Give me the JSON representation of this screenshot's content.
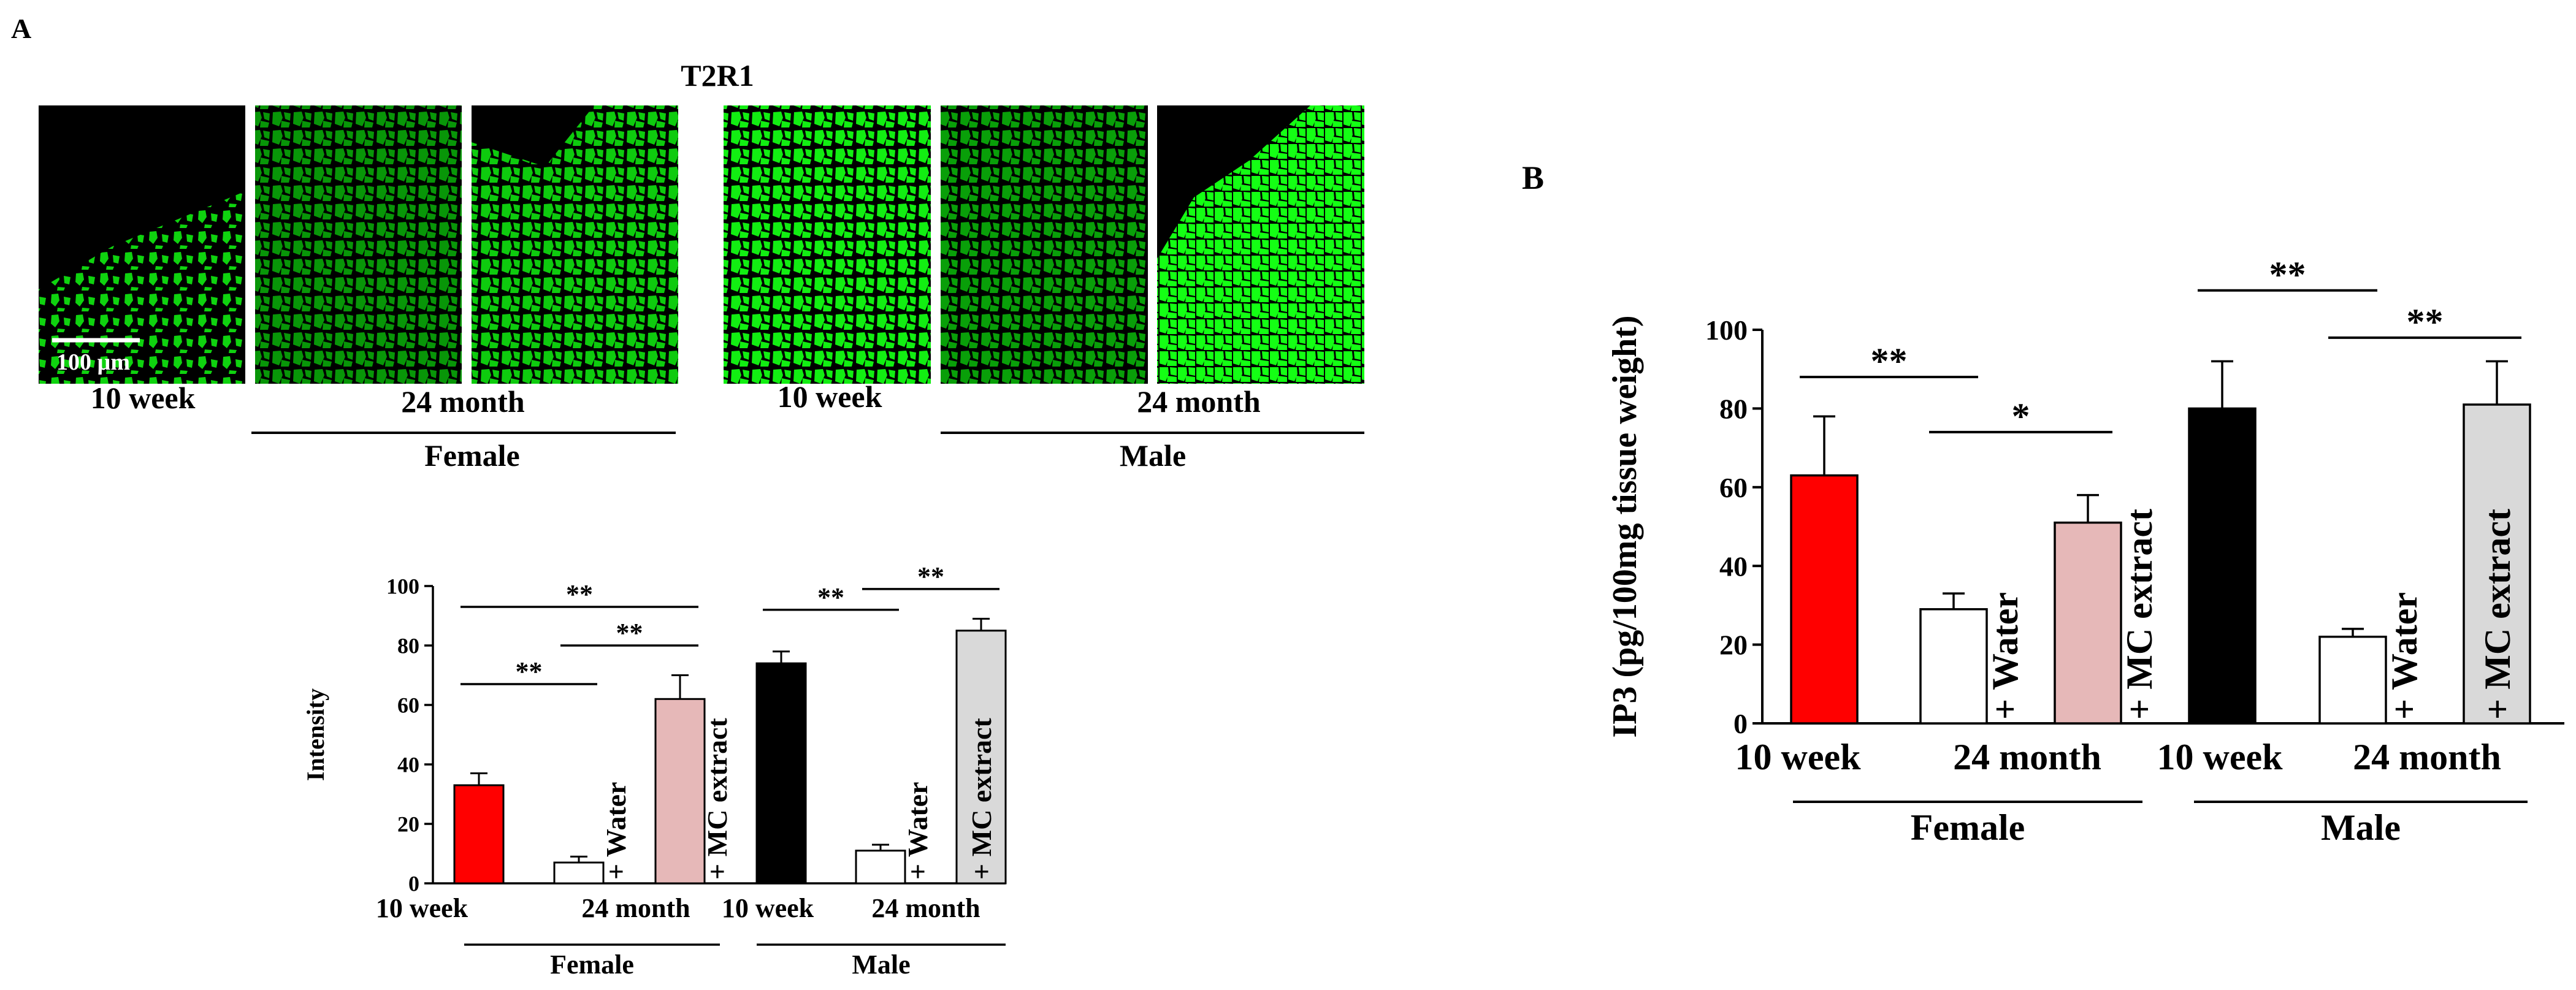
{
  "panel_a": {
    "label": "A",
    "title": "T2R1",
    "scale_bar": "100 µm",
    "micrographs": [
      {
        "group": "Female",
        "condition": "10 week",
        "brightness": 0.75,
        "pattern": "sparse"
      },
      {
        "group": "Female",
        "condition": "24 month + Water",
        "brightness": 0.4,
        "pattern": "dense"
      },
      {
        "group": "Female",
        "condition": "24 month + MC extract",
        "brightness": 0.7,
        "pattern": "dense"
      },
      {
        "group": "Male",
        "condition": "10 week",
        "brightness": 0.9,
        "pattern": "dense"
      },
      {
        "group": "Male",
        "condition": "24 month + Water",
        "brightness": 0.45,
        "pattern": "dense"
      },
      {
        "group": "Male",
        "condition": "24 month + MC extract",
        "brightness": 1.0,
        "pattern": "bright"
      }
    ],
    "image_labels": {
      "ten_week": "10 week",
      "twenty_four_month": "24 month"
    },
    "groups": {
      "female": "Female",
      "male": "Male"
    }
  },
  "panel_b": {
    "label": "B"
  },
  "chart_data": [
    {
      "type": "bar",
      "panel": "A",
      "ylabel": "Intensity",
      "ylim": [
        0,
        100
      ],
      "yticks": [
        0,
        20,
        40,
        60,
        80,
        100
      ],
      "categories": [
        "10 week",
        "24 month + Water",
        "24 month + MC extract",
        "10 week",
        "24 month + Water",
        "24 month + MC extract"
      ],
      "values": [
        33,
        7,
        62,
        74,
        11,
        85
      ],
      "errors": [
        4,
        2,
        8,
        4,
        2,
        4
      ],
      "colors": [
        "#ff0000",
        "#ffffff",
        "#e6b8b8",
        "#000000",
        "#ffffff",
        "#d9d9d9"
      ],
      "bar_labels": [
        "",
        "+ Water",
        "+ MC extract",
        "",
        "+ Water",
        "+ MC extract"
      ],
      "x_labels": {
        "ten_week": "10 week",
        "twenty_four_month": "24 month"
      },
      "groups": [
        "Female",
        "Male"
      ],
      "significance": [
        {
          "from": 0,
          "to": 1,
          "text": "**",
          "height": 67
        },
        {
          "from": 0,
          "to": 2,
          "text": "**",
          "height": 93
        },
        {
          "from": 1,
          "to": 2,
          "text": "**",
          "height": 80
        },
        {
          "from": 3,
          "to": 4,
          "text": "**",
          "height": 92
        },
        {
          "from": 4,
          "to": 5,
          "text": "**",
          "height": 99
        }
      ]
    },
    {
      "type": "bar",
      "panel": "B",
      "ylabel": "IP3 (pg/100mg tissue weight)",
      "ylim": [
        0,
        100
      ],
      "yticks": [
        0,
        20,
        40,
        60,
        80,
        100
      ],
      "categories": [
        "10 week",
        "24 month + Water",
        "24 month + MC extract",
        "10 week",
        "24 month + Water",
        "24 month + MC extract"
      ],
      "values": [
        63,
        29,
        51,
        80,
        22,
        81
      ],
      "errors": [
        15,
        4,
        7,
        12,
        2,
        11
      ],
      "colors": [
        "#ff0000",
        "#ffffff",
        "#e6b8b8",
        "#000000",
        "#ffffff",
        "#d9d9d9"
      ],
      "bar_labels": [
        "",
        "+ Water",
        "+ MC extract",
        "",
        "+ Water",
        "+ MC extract"
      ],
      "x_labels": {
        "ten_week": "10 week",
        "twenty_four_month": "24 month"
      },
      "groups": [
        "Female",
        "Male"
      ],
      "significance": [
        {
          "from": 0,
          "to": 1,
          "text": "**",
          "height": 88
        },
        {
          "from": 1,
          "to": 2,
          "text": "*",
          "height": 74
        },
        {
          "from": 3,
          "to": 4,
          "text": "**",
          "height": 110
        },
        {
          "from": 4,
          "to": 5,
          "text": "**",
          "height": 98
        }
      ]
    }
  ]
}
